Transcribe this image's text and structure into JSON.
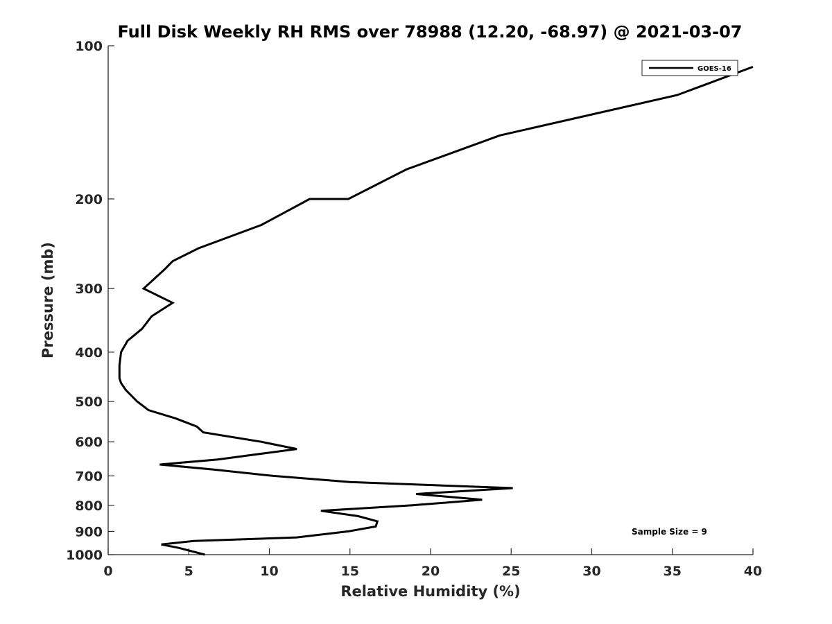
{
  "chart_data": {
    "type": "line",
    "title": "Full Disk Weekly RH RMS over 78988 (12.20, -68.97) @ 2021-03-07",
    "xlabel": "Relative Humidity (%)",
    "ylabel": "Pressure (mb)",
    "xlim": [
      0,
      40
    ],
    "ylim": [
      100,
      1000
    ],
    "y_scale": "log",
    "y_reversed": true,
    "xticks": [
      0,
      5,
      10,
      15,
      20,
      25,
      30,
      35,
      40
    ],
    "yticks": [
      100,
      200,
      300,
      400,
      500,
      600,
      700,
      800,
      900,
      1000
    ],
    "grid": false,
    "legend_position": "top-right",
    "annotation": "Sample Size = 9",
    "series": [
      {
        "name": "GOES-16",
        "color": "#000000",
        "points": [
          [
            40.0,
            110
          ],
          [
            35.3,
            125
          ],
          [
            24.3,
            150
          ],
          [
            18.5,
            175
          ],
          [
            14.9,
            200
          ],
          [
            12.5,
            200
          ],
          [
            9.5,
            225
          ],
          [
            5.6,
            250
          ],
          [
            4.0,
            265
          ],
          [
            3.5,
            275
          ],
          [
            2.2,
            300
          ],
          [
            4.0,
            320
          ],
          [
            2.7,
            340
          ],
          [
            2.1,
            360
          ],
          [
            1.2,
            380
          ],
          [
            0.8,
            400
          ],
          [
            0.7,
            425
          ],
          [
            0.7,
            450
          ],
          [
            0.8,
            460
          ],
          [
            1.1,
            475
          ],
          [
            1.8,
            500
          ],
          [
            2.5,
            520
          ],
          [
            4.2,
            540
          ],
          [
            5.5,
            560
          ],
          [
            5.9,
            575
          ],
          [
            9.5,
            600
          ],
          [
            11.7,
            620
          ],
          [
            6.8,
            650
          ],
          [
            3.2,
            665
          ],
          [
            6.5,
            680
          ],
          [
            10.2,
            700
          ],
          [
            15.0,
            720
          ],
          [
            25.1,
            740
          ],
          [
            19.1,
            760
          ],
          [
            23.2,
            780
          ],
          [
            18.8,
            800
          ],
          [
            13.2,
            820
          ],
          [
            15.5,
            840
          ],
          [
            16.7,
            860
          ],
          [
            16.6,
            880
          ],
          [
            14.9,
            900
          ],
          [
            11.7,
            925
          ],
          [
            5.3,
            940
          ],
          [
            3.3,
            955
          ],
          [
            4.4,
            970
          ],
          [
            6.0,
            1000
          ]
        ]
      }
    ]
  }
}
